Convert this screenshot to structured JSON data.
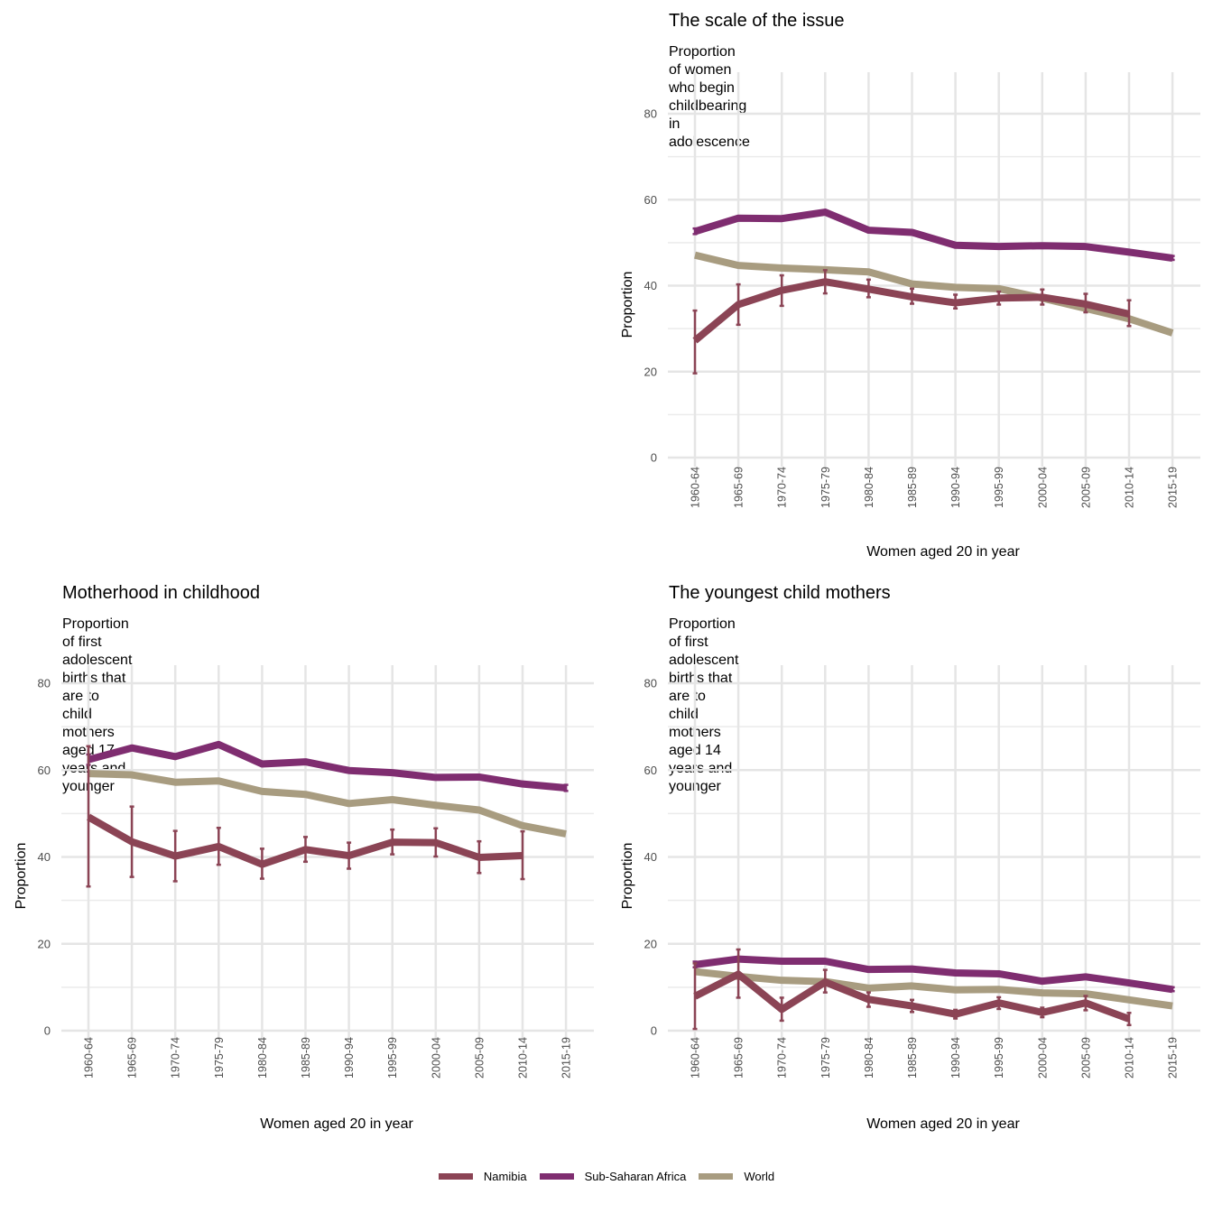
{
  "legend": {
    "items": [
      {
        "name": "Namibia",
        "color": "#8b4455"
      },
      {
        "name": "Sub-Saharan Africa",
        "color": "#7f2d70"
      },
      {
        "name": "World",
        "color": "#a89c80"
      }
    ]
  },
  "chart_data": [
    {
      "id": "scale",
      "type": "line",
      "title": "The scale of the issue",
      "subtitle": "Proportion of women who begin childbearing in adolescence",
      "xlabel": "Women aged 20 in year",
      "ylabel": "Proportion",
      "ylim": [
        0,
        80
      ],
      "yticks": [
        0,
        20,
        40,
        60,
        80
      ],
      "grid": true,
      "categories": [
        "1960-64",
        "1965-69",
        "1970-74",
        "1975-79",
        "1980-84",
        "1985-89",
        "1990-94",
        "1995-99",
        "2000-04",
        "2005-09",
        "2010-14",
        "2015-19"
      ],
      "series": [
        {
          "name": "Sub-Saharan Africa",
          "values": [
            52.6,
            55.7,
            55.6,
            57.1,
            52.9,
            52.4,
            49.4,
            49.1,
            49.3,
            49.1,
            47.8,
            46.4
          ],
          "error_low": [
            52.0,
            null,
            null,
            null,
            null,
            null,
            null,
            null,
            null,
            null,
            null,
            46.0
          ],
          "error_high": [
            53.3,
            null,
            null,
            null,
            null,
            null,
            null,
            null,
            null,
            null,
            null,
            46.9
          ]
        },
        {
          "name": "World",
          "values": [
            47.1,
            44.7,
            44.1,
            43.7,
            43.2,
            40.4,
            39.6,
            39.3,
            37.1,
            34.7,
            32.3,
            29.0
          ]
        },
        {
          "name": "Namibia",
          "values": [
            27.2,
            35.6,
            38.9,
            40.9,
            39.2,
            37.4,
            36.0,
            37.1,
            37.3,
            35.7,
            33.4,
            null
          ],
          "error_low": [
            19.6,
            30.9,
            35.3,
            38.2,
            37.3,
            35.8,
            34.7,
            35.6,
            35.6,
            33.8,
            30.6,
            null
          ],
          "error_high": [
            34.2,
            40.3,
            42.4,
            43.6,
            41.4,
            39.3,
            37.9,
            38.6,
            39.1,
            38.1,
            36.6,
            null
          ]
        }
      ]
    },
    {
      "id": "motherhood",
      "type": "line",
      "title": "Motherhood in childhood",
      "subtitle": "Proportion of first adolescent births that are to child mothers\naged 17 years and younger",
      "xlabel": "Women aged 20 in year",
      "ylabel": "Proportion",
      "ylim": [
        0,
        80
      ],
      "yticks": [
        0,
        20,
        40,
        60,
        80
      ],
      "grid": true,
      "categories": [
        "1960-64",
        "1965-69",
        "1970-74",
        "1975-79",
        "1980-84",
        "1985-89",
        "1990-94",
        "1995-99",
        "2000-04",
        "2005-09",
        "2010-14",
        "2015-19"
      ],
      "series": [
        {
          "name": "Sub-Saharan Africa",
          "values": [
            62.4,
            65.1,
            63.1,
            65.9,
            61.4,
            61.9,
            59.9,
            59.4,
            58.3,
            58.4,
            56.8,
            55.9
          ],
          "error_low": [
            61.2,
            null,
            null,
            null,
            null,
            null,
            null,
            null,
            null,
            null,
            null,
            55.2
          ],
          "error_high": [
            63.6,
            null,
            null,
            null,
            null,
            null,
            null,
            null,
            null,
            null,
            null,
            56.6
          ]
        },
        {
          "name": "World",
          "values": [
            59.2,
            58.9,
            57.2,
            57.5,
            55.1,
            54.4,
            52.3,
            53.2,
            51.9,
            50.8,
            47.2,
            45.3
          ]
        },
        {
          "name": "Namibia",
          "values": [
            49.2,
            43.5,
            40.2,
            42.4,
            38.3,
            41.7,
            40.3,
            43.4,
            43.3,
            39.9,
            40.3,
            null
          ],
          "error_low": [
            33.2,
            35.4,
            34.4,
            38.2,
            35.0,
            38.9,
            37.3,
            40.6,
            40.1,
            36.3,
            34.9,
            null
          ],
          "error_high": [
            65.5,
            51.6,
            46.0,
            46.7,
            41.9,
            44.6,
            43.3,
            46.3,
            46.6,
            43.6,
            45.9,
            null
          ]
        }
      ]
    },
    {
      "id": "youngest",
      "type": "line",
      "title": "The youngest child mothers",
      "subtitle": "Proportion of first adolescent births that are to child mothers\naged 14 years and younger",
      "xlabel": "Women aged 20 in year",
      "ylabel": "Proportion",
      "ylim": [
        0,
        80
      ],
      "yticks": [
        0,
        20,
        40,
        60,
        80
      ],
      "grid": true,
      "categories": [
        "1960-64",
        "1965-69",
        "1970-74",
        "1975-79",
        "1980-84",
        "1985-89",
        "1990-94",
        "1995-99",
        "2000-04",
        "2005-09",
        "2010-14",
        "2015-19"
      ],
      "series": [
        {
          "name": "Sub-Saharan Africa",
          "values": [
            15.2,
            16.5,
            16.0,
            16.0,
            14.1,
            14.2,
            13.3,
            13.1,
            11.4,
            12.4,
            11.0,
            9.5
          ],
          "error_low": [
            14.6,
            null,
            null,
            null,
            null,
            null,
            null,
            null,
            null,
            null,
            null,
            9.1
          ],
          "error_high": [
            15.9,
            null,
            null,
            null,
            null,
            null,
            null,
            null,
            null,
            null,
            null,
            10.0
          ]
        },
        {
          "name": "World",
          "values": [
            13.6,
            12.5,
            11.6,
            11.3,
            9.8,
            10.3,
            9.4,
            9.5,
            8.7,
            8.5,
            7.1,
            5.7
          ]
        },
        {
          "name": "Namibia",
          "values": [
            7.9,
            13.0,
            4.9,
            11.2,
            7.2,
            5.7,
            3.8,
            6.4,
            4.2,
            6.4,
            2.7,
            null
          ],
          "error_low": [
            0.4,
            7.6,
            2.3,
            8.8,
            5.5,
            4.3,
            2.8,
            5.0,
            3.1,
            4.7,
            1.3,
            null
          ],
          "error_high": [
            15.5,
            18.7,
            7.6,
            14.0,
            8.8,
            7.1,
            4.8,
            7.7,
            5.3,
            8.0,
            4.1,
            null
          ]
        }
      ]
    }
  ]
}
